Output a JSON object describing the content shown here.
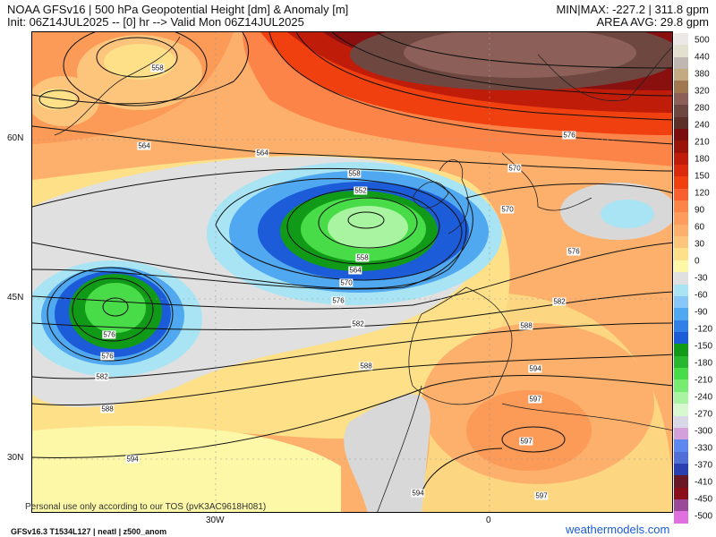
{
  "header": {
    "title": "NOAA GFSv16 | 500 hPa Geopotential Height [dm] & Anomaly [m]",
    "subtitle": "Init: 06Z14JUL2025 -- [0] hr --> Valid Mon 06Z14JUL2025",
    "minmax": "MIN|MAX: -227.2 | 311.8 gpm",
    "area_avg": "AREA AVG: 29.8 gpm"
  },
  "axes": {
    "lat_labels": [
      "60N",
      "45N",
      "30N"
    ],
    "lon_labels": [
      "30W",
      "0"
    ]
  },
  "contour_labels": [
    "558",
    "564",
    "564",
    "576",
    "570",
    "558",
    "552",
    "570",
    "558",
    "564",
    "570",
    "576",
    "582",
    "576",
    "582",
    "588",
    "588",
    "594",
    "597",
    "597",
    "597",
    "594",
    "576",
    "576",
    "582",
    "588",
    "594"
  ],
  "colorbar": {
    "labels": [
      "500",
      "440",
      "380",
      "320",
      "280",
      "240",
      "210",
      "180",
      "150",
      "120",
      "90",
      "60",
      "30",
      "0",
      "-30",
      "-60",
      "-90",
      "-120",
      "-150",
      "-180",
      "-210",
      "-240",
      "-270",
      "-300",
      "-330",
      "-370",
      "-410",
      "-450",
      "-500"
    ],
    "colors": [
      "#ece8e8",
      "#e4e0d0",
      "#c0b8b0",
      "#c4aa80",
      "#a07850",
      "#8c6058",
      "#6e4840",
      "#5a3028",
      "#7a0e0e",
      "#9a1408",
      "#c01c0a",
      "#dc2a0c",
      "#f04010",
      "#f86030",
      "#fc8448",
      "#fd9c5c",
      "#fdb06c",
      "#fdc47c",
      "#fde088",
      "#fdf8a8",
      "#e0e0e0",
      "#a8e4f4",
      "#88c8f8",
      "#50a8f0",
      "#3080e8",
      "#1c5cd8",
      "#109a18",
      "#28b830",
      "#48dc48",
      "#78ec70",
      "#a8f4a0",
      "#d8f8d0",
      "#d8d8e8",
      "#d4a0dc",
      "#5c88f0",
      "#5070d8",
      "#2840b0",
      "#6a1828",
      "#8a0e1a",
      "#9a4898",
      "#e070e0"
    ]
  },
  "footer": {
    "tos": "Personal use only according to our TOS (pvK3AC9618H081)",
    "model": "GFSv16.3 T1534L127 | neatl | z500_anom",
    "brand": "weathermodels.com"
  },
  "colors": {
    "brand": "#1a5cd0",
    "low_anomaly": "#1f9e1f",
    "high_anomaly": "#5e3a32"
  }
}
